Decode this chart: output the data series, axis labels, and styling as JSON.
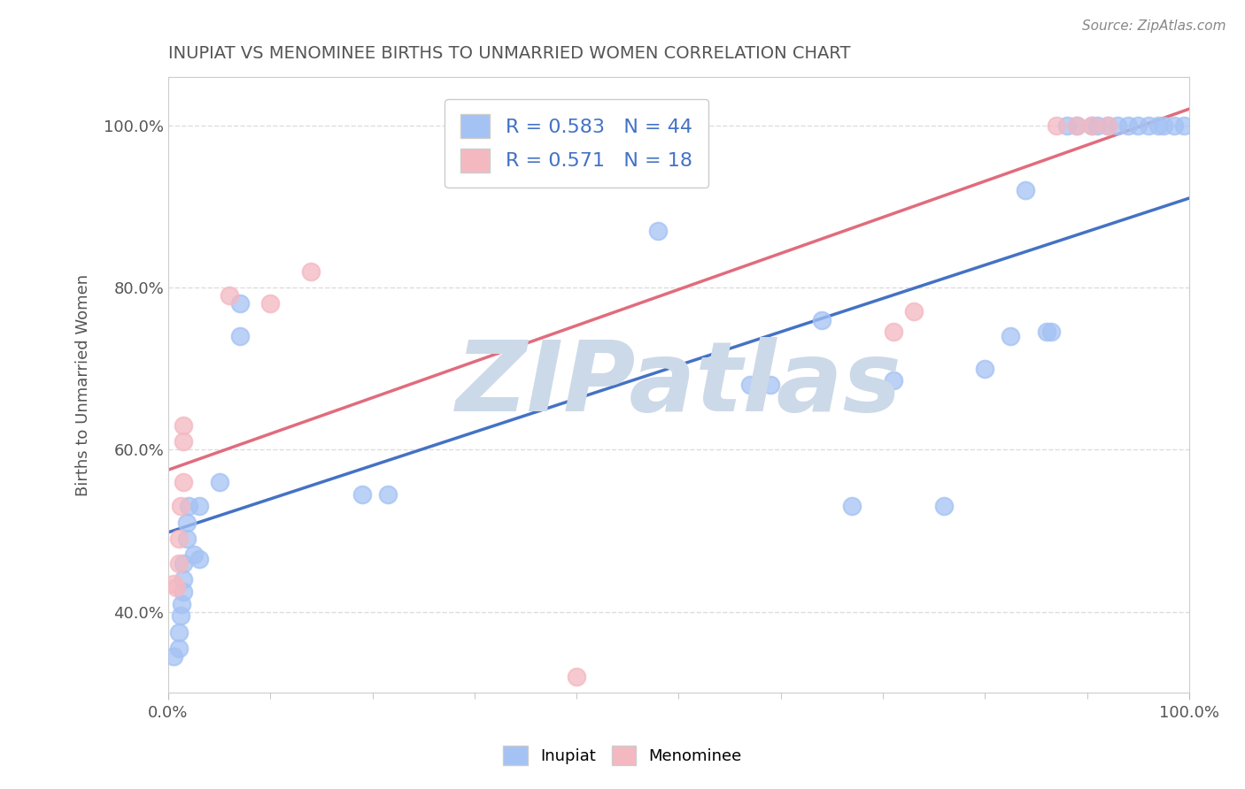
{
  "title": "INUPIAT VS MENOMINEE BIRTHS TO UNMARRIED WOMEN CORRELATION CHART",
  "source_text": "Source: ZipAtlas.com",
  "xlabel": "",
  "ylabel": "Births to Unmarried Women",
  "xlim": [
    0.0,
    1.0
  ],
  "ylim": [
    0.3,
    1.06
  ],
  "x_ticks": [
    0.0,
    1.0
  ],
  "x_tick_labels": [
    "0.0%",
    "100.0%"
  ],
  "y_ticks": [
    0.4,
    0.6,
    0.8,
    1.0
  ],
  "y_tick_labels": [
    "40.0%",
    "60.0%",
    "80.0%",
    "100.0%"
  ],
  "inupiat_color": "#a4c2f4",
  "menominee_color": "#f4b8c1",
  "inupiat_R": 0.583,
  "inupiat_N": 44,
  "menominee_R": 0.571,
  "menominee_N": 18,
  "inupiat_points": [
    [
      0.005,
      0.345
    ],
    [
      0.01,
      0.355
    ],
    [
      0.01,
      0.375
    ],
    [
      0.012,
      0.395
    ],
    [
      0.013,
      0.41
    ],
    [
      0.015,
      0.425
    ],
    [
      0.015,
      0.44
    ],
    [
      0.015,
      0.46
    ],
    [
      0.018,
      0.49
    ],
    [
      0.018,
      0.51
    ],
    [
      0.02,
      0.53
    ],
    [
      0.025,
      0.47
    ],
    [
      0.03,
      0.53
    ],
    [
      0.03,
      0.465
    ],
    [
      0.05,
      0.56
    ],
    [
      0.07,
      0.78
    ],
    [
      0.07,
      0.74
    ],
    [
      0.19,
      0.545
    ],
    [
      0.215,
      0.545
    ],
    [
      0.48,
      0.87
    ],
    [
      0.57,
      0.68
    ],
    [
      0.59,
      0.68
    ],
    [
      0.64,
      0.76
    ],
    [
      0.67,
      0.53
    ],
    [
      0.71,
      0.685
    ],
    [
      0.76,
      0.53
    ],
    [
      0.8,
      0.7
    ],
    [
      0.825,
      0.74
    ],
    [
      0.84,
      0.92
    ],
    [
      0.86,
      0.745
    ],
    [
      0.865,
      0.745
    ],
    [
      0.88,
      1.0
    ],
    [
      0.89,
      1.0
    ],
    [
      0.905,
      1.0
    ],
    [
      0.91,
      1.0
    ],
    [
      0.92,
      1.0
    ],
    [
      0.93,
      1.0
    ],
    [
      0.94,
      1.0
    ],
    [
      0.95,
      1.0
    ],
    [
      0.96,
      1.0
    ],
    [
      0.97,
      1.0
    ],
    [
      0.975,
      1.0
    ],
    [
      0.985,
      1.0
    ],
    [
      0.995,
      1.0
    ]
  ],
  "menominee_points": [
    [
      0.005,
      0.435
    ],
    [
      0.008,
      0.43
    ],
    [
      0.01,
      0.46
    ],
    [
      0.01,
      0.49
    ],
    [
      0.012,
      0.53
    ],
    [
      0.015,
      0.56
    ],
    [
      0.015,
      0.61
    ],
    [
      0.015,
      0.63
    ],
    [
      0.06,
      0.79
    ],
    [
      0.1,
      0.78
    ],
    [
      0.14,
      0.82
    ],
    [
      0.4,
      0.32
    ],
    [
      0.71,
      0.745
    ],
    [
      0.73,
      0.77
    ],
    [
      0.87,
      1.0
    ],
    [
      0.89,
      1.0
    ],
    [
      0.905,
      1.0
    ],
    [
      0.92,
      1.0
    ]
  ],
  "inupiat_line": [
    0.498,
    0.91
  ],
  "menominee_line": [
    0.575,
    1.02
  ],
  "watermark": "ZIPatlas",
  "watermark_color": "#ccd9e8",
  "background_color": "#ffffff",
  "grid_color": "#dddddd",
  "title_color": "#555555",
  "axis_color": "#aaaaaa",
  "legend_R_color": "#4472c4",
  "inupiat_line_color": "#4472c4",
  "menominee_line_color": "#e06c7d"
}
